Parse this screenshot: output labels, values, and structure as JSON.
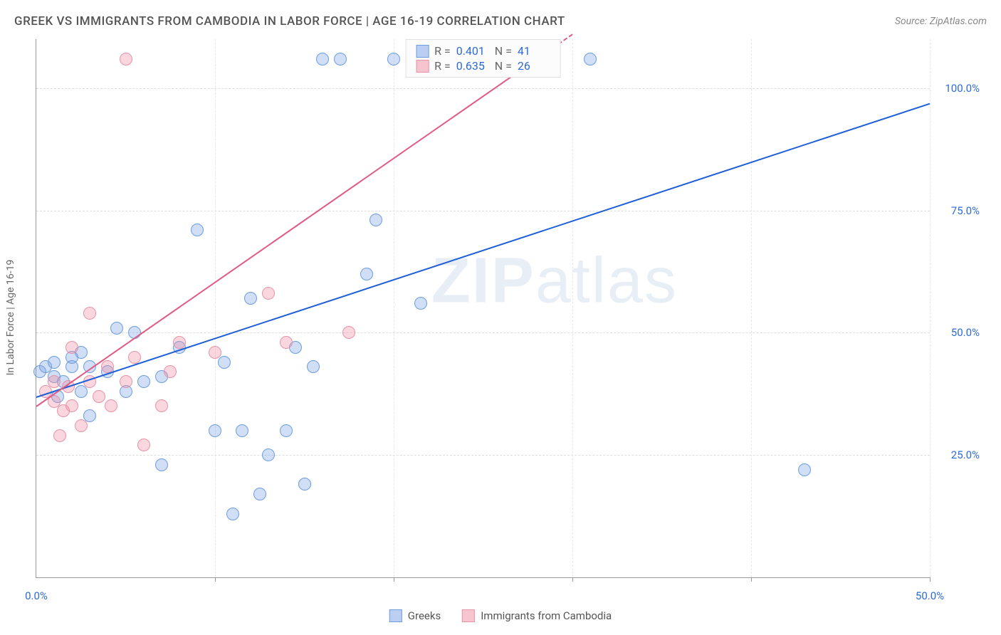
{
  "title": "GREEK VS IMMIGRANTS FROM CAMBODIA IN LABOR FORCE | AGE 16-19 CORRELATION CHART",
  "source": "Source: ZipAtlas.com",
  "y_axis_label": "In Labor Force | Age 16-19",
  "watermark_bold": "ZIP",
  "watermark_light": "atlas",
  "chart": {
    "type": "scatter",
    "xlim": [
      0,
      50
    ],
    "ylim": [
      0,
      110
    ],
    "x_ticks": [
      0,
      10,
      20,
      30,
      40,
      50
    ],
    "x_tick_labels": {
      "0": "0.0%",
      "50": "50.0%"
    },
    "y_ticks": [
      25,
      50,
      75,
      100
    ],
    "y_tick_labels": {
      "25": "25.0%",
      "50": "50.0%",
      "75": "75.0%",
      "100": "100.0%"
    },
    "x_tick_label_color": "#2e6bd6",
    "y_tick_label_color": "#2e6bd6",
    "background_color": "#ffffff",
    "grid_color": "#dddddd",
    "series": [
      {
        "name": "Greeks",
        "color_fill": "rgba(120,160,230,0.35)",
        "color_stroke": "#6d9de0",
        "marker_radius": 9,
        "trend": {
          "x1": 0,
          "y1": 37,
          "x2": 50,
          "y2": 97,
          "color": "#1f5fd6",
          "width": 2
        },
        "stats": {
          "R": "0.401",
          "N": "41"
        },
        "points": [
          [
            0.2,
            42
          ],
          [
            0.5,
            43
          ],
          [
            1,
            41
          ],
          [
            1,
            44
          ],
          [
            1.2,
            37
          ],
          [
            1.5,
            40
          ],
          [
            2,
            45
          ],
          [
            2,
            43
          ],
          [
            2.5,
            38
          ],
          [
            2.5,
            46
          ],
          [
            3,
            33
          ],
          [
            3,
            43
          ],
          [
            4,
            42
          ],
          [
            4.5,
            51
          ],
          [
            5,
            38
          ],
          [
            5.5,
            50
          ],
          [
            6,
            40
          ],
          [
            7,
            23
          ],
          [
            7,
            41
          ],
          [
            8,
            47
          ],
          [
            9,
            71
          ],
          [
            10,
            30
          ],
          [
            10.5,
            44
          ],
          [
            11,
            13
          ],
          [
            11.5,
            30
          ],
          [
            12,
            57
          ],
          [
            12.5,
            17
          ],
          [
            13,
            25
          ],
          [
            14,
            30
          ],
          [
            14.5,
            47
          ],
          [
            15,
            19
          ],
          [
            15.5,
            43
          ],
          [
            16,
            106
          ],
          [
            17,
            106
          ],
          [
            18.5,
            62
          ],
          [
            19,
            73
          ],
          [
            20,
            106
          ],
          [
            21.5,
            56
          ],
          [
            23,
            106
          ],
          [
            31,
            106
          ],
          [
            43,
            22
          ]
        ]
      },
      {
        "name": "Immigrants from Cambodia",
        "color_fill": "rgba(240,140,160,0.35)",
        "color_stroke": "#e792a6",
        "marker_radius": 9,
        "trend": {
          "x1": 0,
          "y1": 35,
          "x2": 28,
          "y2": 106,
          "dash_to_x": 30,
          "color": "#e05b84",
          "width": 2
        },
        "stats": {
          "R": "0.635",
          "N": "26"
        },
        "points": [
          [
            0.5,
            38
          ],
          [
            1,
            40
          ],
          [
            1,
            36
          ],
          [
            1.3,
            29
          ],
          [
            1.5,
            34
          ],
          [
            1.8,
            39
          ],
          [
            2,
            47
          ],
          [
            2,
            35
          ],
          [
            2.5,
            31
          ],
          [
            3,
            40
          ],
          [
            3,
            54
          ],
          [
            3.5,
            37
          ],
          [
            4,
            43
          ],
          [
            4.2,
            35
          ],
          [
            5,
            40
          ],
          [
            5,
            106
          ],
          [
            5.5,
            45
          ],
          [
            6,
            27
          ],
          [
            7,
            35
          ],
          [
            7.5,
            42
          ],
          [
            8,
            48
          ],
          [
            10,
            46
          ],
          [
            13,
            58
          ],
          [
            14,
            48
          ],
          [
            17.5,
            50
          ],
          [
            25.5,
            106
          ]
        ]
      }
    ]
  },
  "legend": {
    "series1": "Greeks",
    "series2": "Immigrants from Cambodia"
  }
}
